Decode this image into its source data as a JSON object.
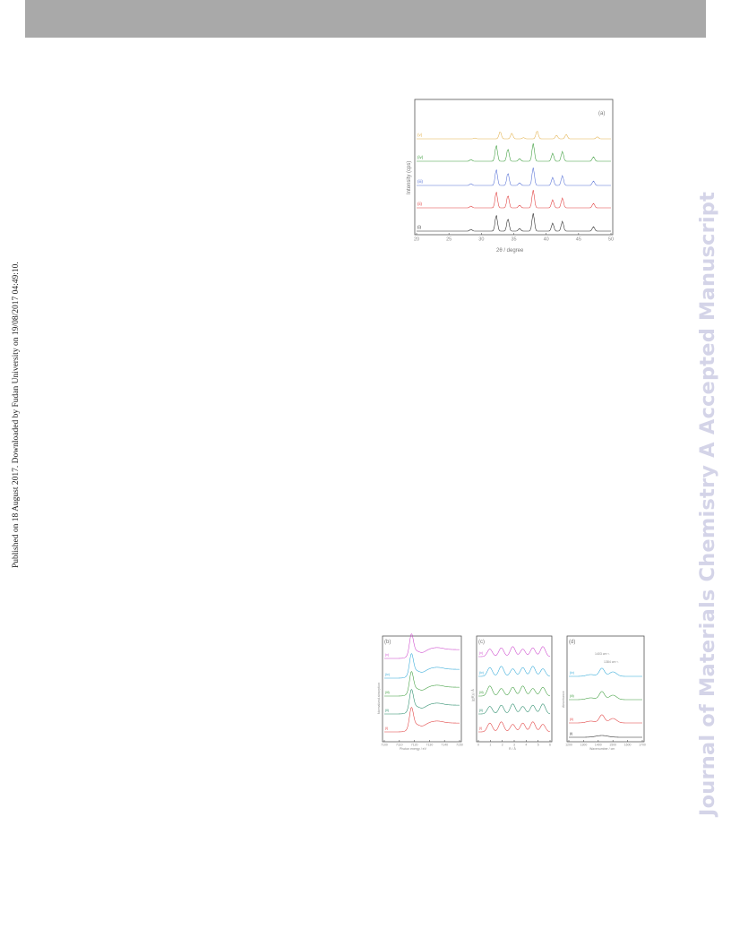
{
  "header_bar": {
    "color": "#a9a9a9"
  },
  "side_note": "Published on 18 August 2017. Downloaded by Fudan University on 19/08/2017 04:49:10.",
  "watermark": "Journal of Materials Chemistry A Accepted Manuscript",
  "figures": {
    "xrd": {
      "panel_label": "(a)",
      "ylabel": "Intensity (cps)",
      "xlabel": "2θ / degree",
      "x_ticks": [
        "20",
        "25",
        "30",
        "35",
        "40",
        "45",
        "50"
      ],
      "series_labels": [
        "(v)",
        "(iv)",
        "(iii)",
        "(ii)",
        "(i)"
      ],
      "series_colors": [
        "#e3b24e",
        "#3a9c3a",
        "#5570d6",
        "#e03a3a",
        "#222222"
      ]
    },
    "spectra": {
      "xanes": {
        "panel_label": "(b)",
        "ylabel": "Normalized absorption",
        "xlabel": "Photon energy / eV",
        "x_ticks": [
          "7100",
          "7110",
          "7120",
          "7130",
          "7140",
          "7150"
        ],
        "series_labels": [
          "(v)",
          "(iv)",
          "(iii)",
          "(ii)",
          "(i)"
        ],
        "series_colors": [
          "#cc44cc",
          "#2fa8d8",
          "#3a9c3a",
          "#228866",
          "#e03a3a"
        ]
      },
      "exafs": {
        "panel_label": "(c)",
        "ylabel": "|χ(R)| / Å",
        "xlabel": "R / Å",
        "x_ticks": [
          "0",
          "1",
          "2",
          "3",
          "4",
          "5",
          "6"
        ],
        "series_labels": [
          "(v)",
          "(iv)",
          "(iii)",
          "(ii)",
          "(i)"
        ],
        "series_colors": [
          "#cc44cc",
          "#2fa8d8",
          "#3a9c3a",
          "#228866",
          "#e03a3a"
        ]
      },
      "raman": {
        "panel_label": "(d)",
        "ylabel": "Absorbance",
        "xlabel": "Wavenumber / cm",
        "annotation_1": "1403 cm⁻¹",
        "annotation_2": "1384 cm⁻¹",
        "x_ticks": [
          "1200",
          "1300",
          "1400",
          "1500",
          "1600",
          "1700"
        ],
        "series_labels": [
          "(iv)",
          "(iii)",
          "(ii)",
          "(i)"
        ],
        "series_colors": [
          "#2fa8d8",
          "#3a9c3a",
          "#e03a3a",
          "#222222"
        ]
      }
    }
  }
}
